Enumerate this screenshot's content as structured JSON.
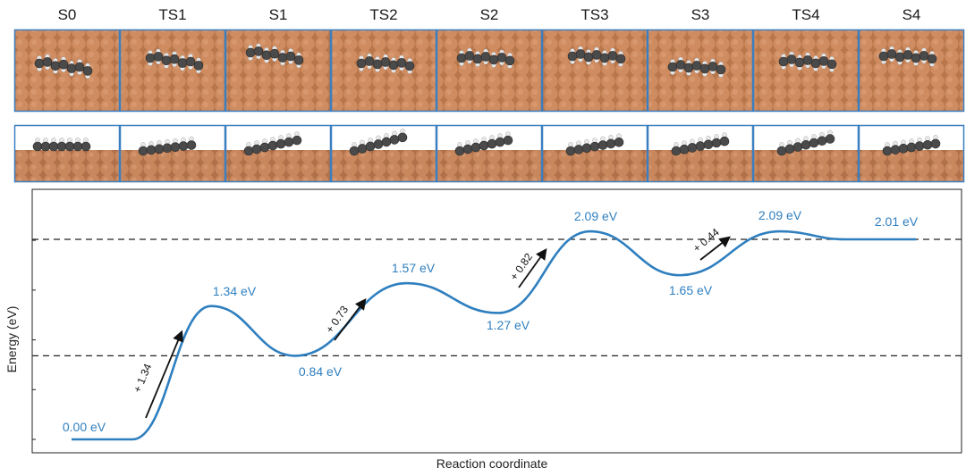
{
  "colors": {
    "curve": "#2f7fbf",
    "label": "#2f7fbf",
    "copper": "#c9875d",
    "copper_dark": "#a8663e",
    "frame": "#3b7fc0",
    "carbon": "#4a4a4a",
    "hydrogen": "#e8e8e8",
    "arrow": "#111111"
  },
  "structures": {
    "labels": [
      "S0",
      "TS1",
      "S1",
      "TS2",
      "S2",
      "TS3",
      "S3",
      "TS4",
      "S4"
    ],
    "top_view_icon": "copper-slab-top-view",
    "side_view_icon": "copper-slab-side-view"
  },
  "chart_data": {
    "type": "line",
    "xlabel": "Reaction coordinate",
    "ylabel": "Energy (eV)",
    "grid": false,
    "reference_lines": [
      0.84,
      2.01
    ],
    "ylim": [
      -0.05,
      2.6
    ],
    "points": [
      {
        "name": "S0",
        "x": 0,
        "energy": 0.0,
        "label": "0.00 eV"
      },
      {
        "name": "TS1",
        "x": 1,
        "energy": 1.34,
        "label": "1.34 eV"
      },
      {
        "name": "S1",
        "x": 2,
        "energy": 0.84,
        "label": "0.84 eV"
      },
      {
        "name": "TS2",
        "x": 3,
        "energy": 1.57,
        "label": "1.57 eV"
      },
      {
        "name": "S2",
        "x": 4,
        "energy": 1.27,
        "label": "1.27 eV"
      },
      {
        "name": "TS3",
        "x": 5,
        "energy": 2.09,
        "label": "2.09 eV"
      },
      {
        "name": "S3",
        "x": 6,
        "energy": 1.65,
        "label": "1.65 eV"
      },
      {
        "name": "TS4",
        "x": 7,
        "energy": 2.09,
        "label": "2.09 eV"
      },
      {
        "name": "S4",
        "x": 8,
        "energy": 2.01,
        "label": "2.01 eV"
      }
    ],
    "barriers": [
      {
        "from": "S0",
        "to": "TS1",
        "value": 1.34,
        "label": "+ 1.34"
      },
      {
        "from": "S1",
        "to": "TS2",
        "value": 0.73,
        "label": "+ 0.73"
      },
      {
        "from": "S2",
        "to": "TS3",
        "value": 0.82,
        "label": "+ 0.82"
      },
      {
        "from": "S3",
        "to": "TS4",
        "value": 0.44,
        "label": "+ 0.44"
      }
    ]
  }
}
